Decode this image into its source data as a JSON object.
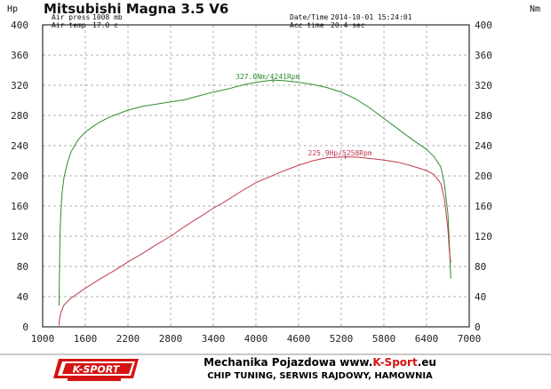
{
  "header": {
    "title": "Mitsubishi Magna 3.5 V6",
    "left_unit": "Hp",
    "right_unit": "Nm",
    "air_press_label": "Air press",
    "air_press_value": "1008 mb",
    "air_temp_label": "Air temp",
    "air_temp_value": "17.0 c",
    "datetime_label": "Date/Time",
    "datetime_value": "2014-10-01 15:24:01",
    "acc_time_label": "Acc time",
    "acc_time_value": "20.4 sec"
  },
  "chart_data": {
    "type": "line",
    "title": "Mitsubishi Magna 3.5 V6",
    "xlabel": "",
    "ylabel_left": "Hp",
    "ylabel_right": "Nm",
    "xlim": [
      1000,
      7000
    ],
    "ylim": [
      0,
      400
    ],
    "x_ticks": [
      1000,
      1600,
      2200,
      2800,
      3400,
      4000,
      4600,
      5200,
      5800,
      6400,
      7000
    ],
    "y_ticks": [
      0,
      40,
      80,
      120,
      160,
      200,
      240,
      280,
      320,
      360,
      400
    ],
    "grid": true,
    "series": [
      {
        "color": "#2e8b2e",
        "x": [
          1230,
          1235,
          1240,
          1250,
          1270,
          1300,
          1350,
          1400,
          1500,
          1600,
          1700,
          1800,
          1900,
          2000,
          2200,
          2400,
          2600,
          2800,
          3000,
          3200,
          3400,
          3600,
          3800,
          4000,
          4242,
          4400,
          4600,
          4800,
          5000,
          5200,
          5400,
          5600,
          5800,
          6000,
          6200,
          6400,
          6500,
          6600,
          6650,
          6700,
          6720,
          6740
        ],
        "y": [
          28,
          60,
          100,
          140,
          175,
          198,
          218,
          232,
          248,
          258,
          265,
          271,
          276,
          280,
          287,
          292,
          295,
          298,
          301,
          306,
          311,
          315,
          320,
          324,
          327,
          326,
          324,
          321,
          317,
          311,
          302,
          290,
          276,
          262,
          248,
          235,
          226,
          212,
          190,
          150,
          110,
          64
        ]
      },
      {
        "color": "#c0394b",
        "x": [
          1230,
          1240,
          1260,
          1300,
          1400,
          1600,
          1800,
          2000,
          2200,
          2400,
          2600,
          2800,
          3000,
          3200,
          3400,
          3600,
          3800,
          4000,
          4200,
          4400,
          4600,
          4800,
          5000,
          5200,
          5400,
          5600,
          5800,
          6000,
          6200,
          6400,
          6500,
          6600,
          6650,
          6700,
          6720,
          6740
        ],
        "y": [
          2,
          12,
          20,
          29,
          38,
          51,
          63,
          74,
          86,
          97,
          109,
          120,
          133,
          145,
          157,
          168,
          180,
          191,
          199,
          207,
          214,
          220,
          224,
          225,
          225,
          223,
          221,
          218,
          213,
          207,
          202,
          190,
          170,
          130,
          100,
          85
        ]
      }
    ],
    "annotations": [
      {
        "text": "327.0Nm/4241Rpm",
        "x": 4241,
        "y": 327,
        "color": "#2e8b2e"
      },
      {
        "text": "225.9Hp/5258Rpm",
        "x": 5258,
        "y": 225.9,
        "color": "#c0394b"
      }
    ]
  },
  "footer": {
    "logo_text": "K-SPORT",
    "line1_prefix": "Mechanika Pojazdowa ",
    "line1_www": "www.",
    "line1_brand": "K-Sport",
    "line1_suffix": ".eu",
    "line2": "CHIP TUNING, SERWIS RAJDOWY, HAMOWNIA",
    "brand_color": "#d41414"
  }
}
